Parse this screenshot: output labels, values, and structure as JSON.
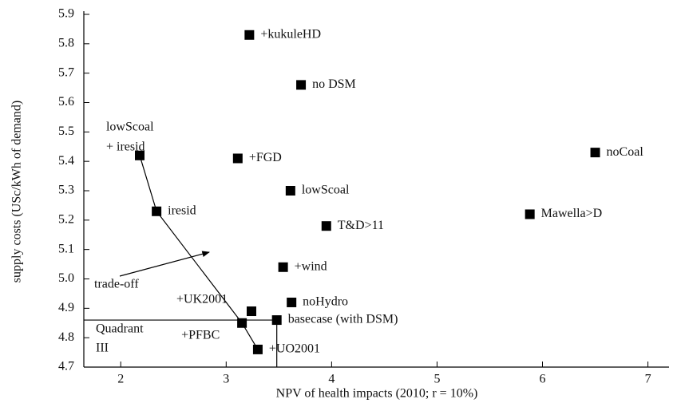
{
  "chart_data": {
    "type": "scatter",
    "x_label": "NPV of health impacts (2010; r = 10%)",
    "y_label": "supply costs (USc/kWh of demand)",
    "xlim": [
      1.65,
      7.2
    ],
    "ylim": [
      4.7,
      5.9
    ],
    "xticks": [
      2,
      3,
      4,
      5,
      6,
      7
    ],
    "yticks": [
      4.7,
      4.8,
      4.9,
      {
        "value": 5,
        "label": "5.0"
      },
      5.1,
      5.2,
      5.3,
      5.4,
      5.5,
      5.6,
      5.7,
      5.8,
      5.9
    ],
    "color": "#000000",
    "series": [
      {
        "labels": [
          "+kukuleHD",
          "no DSM",
          [
            "lowScoal",
            "+ iresid"
          ],
          "+FGD",
          "noCoal",
          "lowScoal",
          "iresid",
          "Mawella>D",
          "T&D>11",
          "+wind",
          "+UK2001",
          "noHydro",
          "basecase (with DSM)",
          "+PFBC",
          "+UO2001"
        ],
        "x": [
          3.22,
          3.71,
          2.18,
          3.11,
          6.5,
          3.61,
          2.34,
          5.88,
          3.95,
          3.54,
          3.24,
          3.62,
          3.48,
          3.15,
          3.3
        ],
        "values": [
          5.83,
          5.66,
          5.42,
          5.41,
          5.43,
          5.3,
          5.23,
          5.22,
          5.18,
          5.04,
          4.89,
          4.92,
          4.86,
          4.85,
          4.76
        ]
      }
    ],
    "annotations": [
      [
        "trade-off"
      ],
      [
        "Quadrant",
        "III"
      ]
    ]
  }
}
